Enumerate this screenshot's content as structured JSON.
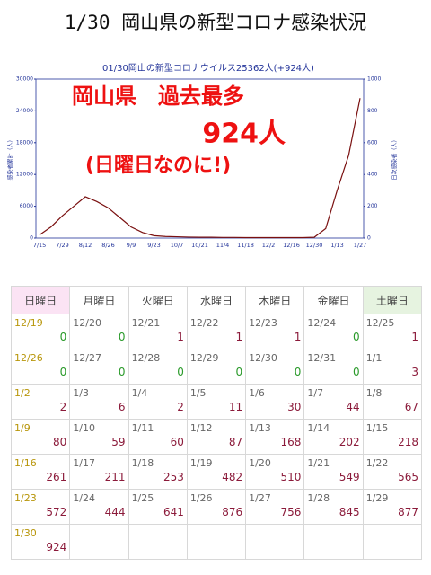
{
  "header": {
    "title": "1/30 岡山県の新型コロナ感染状況"
  },
  "chart_data": {
    "type": "line",
    "title": "01/30岡山の新型コロナウイルス25362人(+924人)",
    "ylabel": "感染者累計（人）",
    "y2label": "日次感染者（人）",
    "annotations": [
      "岡山県　過去最多",
      "924人",
      "(日曜日なのに!)"
    ],
    "categories": [
      "7/15",
      null,
      "7/29",
      null,
      "8/12",
      null,
      "8/26",
      null,
      "9/9",
      null,
      "9/23",
      null,
      "10/7",
      null,
      "10/21",
      null,
      "11/4",
      null,
      "11/18",
      null,
      "12/2",
      null,
      "12/16",
      null,
      "12/30",
      null,
      "1/13",
      null,
      "1/27"
    ],
    "series": [
      {
        "color": "#7a1010",
        "axis": "y2",
        "values": [
          20,
          70,
          140,
          200,
          260,
          230,
          190,
          130,
          70,
          35,
          15,
          10,
          8,
          6,
          5,
          5,
          4,
          4,
          3,
          3,
          3,
          3,
          3,
          3,
          5,
          60,
          300,
          520,
          880
        ]
      }
    ],
    "ylim": [
      0,
      30000
    ],
    "yticks": [
      0,
      6000,
      12000,
      18000,
      24000,
      30000
    ],
    "y2lim": [
      0,
      1000
    ],
    "y2ticks": [
      0,
      200,
      400,
      600,
      800,
      1000
    ]
  },
  "table": {
    "headers": [
      "日曜日",
      "月曜日",
      "火曜日",
      "水曜日",
      "木曜日",
      "金曜日",
      "土曜日"
    ],
    "rows": [
      [
        [
          "12/19",
          0
        ],
        [
          "12/20",
          0
        ],
        [
          "12/21",
          1
        ],
        [
          "12/22",
          1
        ],
        [
          "12/23",
          1
        ],
        [
          "12/24",
          0
        ],
        [
          "12/25",
          1
        ]
      ],
      [
        [
          "12/26",
          0
        ],
        [
          "12/27",
          0
        ],
        [
          "12/28",
          0
        ],
        [
          "12/29",
          0
        ],
        [
          "12/30",
          0
        ],
        [
          "12/31",
          0
        ],
        [
          "1/1",
          3
        ]
      ],
      [
        [
          "1/2",
          2
        ],
        [
          "1/3",
          6
        ],
        [
          "1/4",
          2
        ],
        [
          "1/5",
          11
        ],
        [
          "1/6",
          30
        ],
        [
          "1/7",
          44
        ],
        [
          "1/8",
          67
        ]
      ],
      [
        [
          "1/9",
          80
        ],
        [
          "1/10",
          59
        ],
        [
          "1/11",
          60
        ],
        [
          "1/12",
          87
        ],
        [
          "1/13",
          168
        ],
        [
          "1/14",
          202
        ],
        [
          "1/15",
          218
        ]
      ],
      [
        [
          "1/16",
          261
        ],
        [
          "1/17",
          211
        ],
        [
          "1/18",
          253
        ],
        [
          "1/19",
          482
        ],
        [
          "1/20",
          510
        ],
        [
          "1/21",
          549
        ],
        [
          "1/22",
          565
        ]
      ],
      [
        [
          "1/23",
          572
        ],
        [
          "1/24",
          444
        ],
        [
          "1/25",
          641
        ],
        [
          "1/26",
          876
        ],
        [
          "1/27",
          756
        ],
        [
          "1/28",
          845
        ],
        [
          "1/29",
          877
        ]
      ],
      [
        [
          "1/30",
          924
        ]
      ]
    ]
  }
}
